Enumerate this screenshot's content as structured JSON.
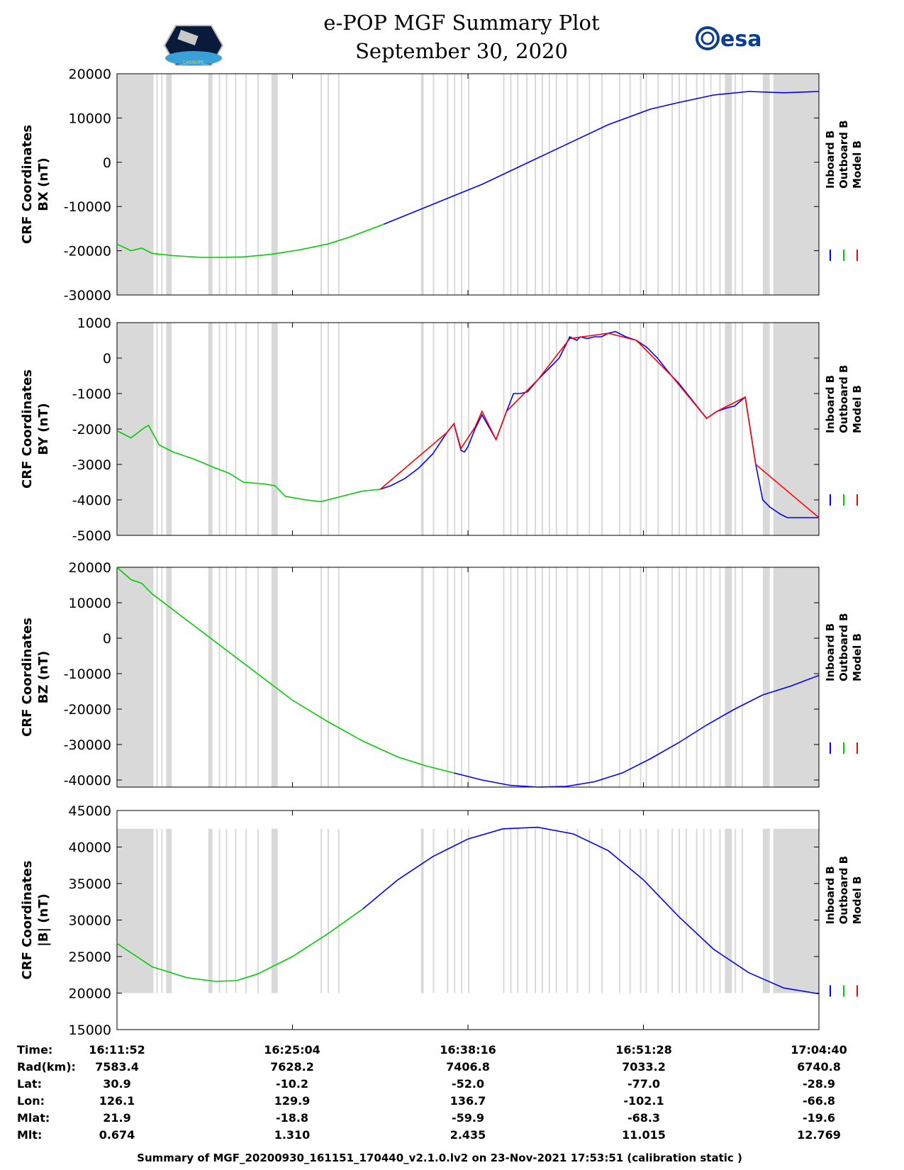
{
  "header": {
    "title": "e-POP MGF Summary Plot",
    "date": "September 30, 2020",
    "logo_left_text": "CASSIOPE",
    "logo_right_text": "esa"
  },
  "legend": {
    "labels": [
      "Inboard B",
      "Outboard B",
      "Model B"
    ],
    "colors": [
      "#0000ff",
      "#00cc00",
      "#ff0000"
    ]
  },
  "time_ticks": [
    "16:11:52",
    "16:25:04",
    "16:38:16",
    "16:51:28",
    "17:04:40"
  ],
  "ephemeris": {
    "rows": [
      {
        "label": "Time:",
        "values": [
          "16:11:52",
          "16:25:04",
          "16:38:16",
          "16:51:28",
          "17:04:40"
        ]
      },
      {
        "label": "Rad(km):",
        "values": [
          "7583.4",
          "7628.2",
          "7406.8",
          "7033.2",
          "6740.8"
        ]
      },
      {
        "label": "Lat:",
        "values": [
          "30.9",
          "-10.2",
          "-52.0",
          "-77.0",
          "-28.9"
        ]
      },
      {
        "label": "Lon:",
        "values": [
          "126.1",
          "129.9",
          "136.7",
          "-102.1",
          "-66.8"
        ]
      },
      {
        "label": "Mlat:",
        "values": [
          "21.9",
          "-18.8",
          "-59.9",
          "-68.3",
          "-19.6"
        ]
      },
      {
        "label": "Mlt:",
        "values": [
          "0.674",
          "1.310",
          "2.435",
          "11.015",
          "12.769"
        ]
      }
    ]
  },
  "footer": "Summary of MGF_20200930_161151_170440_v2.1.0.lv2 on 23-Nov-2021 17:53:51 (calibration static )",
  "gaps": [
    [
      0.0,
      0.052
    ],
    [
      0.056,
      0.058
    ],
    [
      0.063,
      0.065
    ],
    [
      0.07,
      0.078
    ],
    [
      0.13,
      0.136
    ],
    [
      0.145,
      0.147
    ],
    [
      0.155,
      0.157
    ],
    [
      0.168,
      0.17
    ],
    [
      0.183,
      0.185
    ],
    [
      0.2,
      0.202
    ],
    [
      0.22,
      0.229
    ],
    [
      0.29,
      0.292
    ],
    [
      0.3,
      0.302
    ],
    [
      0.315,
      0.317
    ],
    [
      0.433,
      0.437
    ],
    [
      0.45,
      0.452
    ],
    [
      0.47,
      0.472
    ],
    [
      0.48,
      0.482
    ],
    [
      0.49,
      0.492
    ],
    [
      0.5,
      0.502
    ],
    [
      0.55,
      0.552
    ],
    [
      0.56,
      0.562
    ],
    [
      0.57,
      0.572
    ],
    [
      0.583,
      0.585
    ],
    [
      0.595,
      0.597
    ],
    [
      0.605,
      0.607
    ],
    [
      0.615,
      0.617
    ],
    [
      0.625,
      0.627
    ],
    [
      0.64,
      0.642
    ],
    [
      0.655,
      0.657
    ],
    [
      0.672,
      0.674
    ],
    [
      0.69,
      0.692
    ],
    [
      0.715,
      0.717
    ],
    [
      0.73,
      0.732
    ],
    [
      0.745,
      0.747
    ],
    [
      0.753,
      0.755
    ],
    [
      0.77,
      0.772
    ],
    [
      0.79,
      0.792
    ],
    [
      0.8,
      0.802
    ],
    [
      0.81,
      0.812
    ],
    [
      0.825,
      0.827
    ],
    [
      0.835,
      0.837
    ],
    [
      0.845,
      0.847
    ],
    [
      0.858,
      0.86
    ],
    [
      0.866,
      0.876
    ],
    [
      0.88,
      0.882
    ],
    [
      0.89,
      0.892
    ],
    [
      0.92,
      0.93
    ],
    [
      0.935,
      1.0
    ]
  ],
  "chart_data": [
    {
      "type": "line",
      "name": "BX",
      "ylabel": [
        "CRF Coordinates",
        "BX (nT)"
      ],
      "ylim": [
        -30000,
        20000
      ],
      "yticks": [
        20000,
        10000,
        0,
        -10000,
        -20000,
        -30000
      ],
      "x_range": [
        0,
        1
      ],
      "outboard_end": 0.38,
      "series": [
        {
          "name": "Inboard B",
          "color": "#0000ff",
          "x": [
            0.38,
            0.45,
            0.52,
            0.58,
            0.64,
            0.7,
            0.76,
            0.8,
            0.85,
            0.9,
            0.95,
            1.0
          ],
          "y": [
            -14000,
            -9500,
            -5000,
            -500,
            4000,
            8500,
            12000,
            13500,
            15200,
            16000,
            15700,
            16000
          ]
        },
        {
          "name": "Outboard B",
          "color": "#00cc00",
          "x": [
            0.0,
            0.02,
            0.035,
            0.05,
            0.08,
            0.12,
            0.15,
            0.18,
            0.22,
            0.26,
            0.3,
            0.33,
            0.38
          ],
          "y": [
            -18500,
            -20000,
            -19400,
            -20600,
            -21100,
            -21500,
            -21500,
            -21400,
            -20800,
            -19800,
            -18500,
            -17000,
            -14000
          ]
        },
        {
          "name": "Model B",
          "color": "#ff0000",
          "x": [],
          "y": []
        }
      ]
    },
    {
      "type": "line",
      "name": "BY",
      "ylabel": [
        "CRF Coordinates",
        "BY (nT)"
      ],
      "ylim": [
        -5000,
        1000
      ],
      "yticks": [
        1000,
        0,
        -1000,
        -2000,
        -3000,
        -4000,
        -5000
      ],
      "x_range": [
        0,
        1
      ],
      "outboard_end": 0.375,
      "series": [
        {
          "name": "Inboard B",
          "color": "#0000ff",
          "x": [
            0.375,
            0.39,
            0.41,
            0.43,
            0.45,
            0.47,
            0.47,
            0.48,
            0.49,
            0.495,
            0.5,
            0.51,
            0.52,
            0.54,
            0.555,
            0.565,
            0.575,
            0.585,
            0.6,
            0.615,
            0.63,
            0.645,
            0.655,
            0.66,
            0.67,
            0.68,
            0.69,
            0.7,
            0.71,
            0.725,
            0.74,
            0.755,
            0.77,
            0.79,
            0.8,
            0.82,
            0.84,
            0.855,
            0.87,
            0.88,
            0.895,
            0.91,
            0.92,
            0.93,
            0.945,
            0.955,
            0.965,
            0.975,
            0.985,
            1.0
          ],
          "y": [
            -3700,
            -3600,
            -3400,
            -3100,
            -2700,
            -2100,
            -2100,
            -1850,
            -2600,
            -2650,
            -2500,
            -2000,
            -1600,
            -2300,
            -1500,
            -1000,
            -1000,
            -950,
            -600,
            -300,
            0,
            600,
            500,
            600,
            550,
            600,
            600,
            700,
            750,
            600,
            500,
            300,
            0,
            -500,
            -700,
            -1200,
            -1700,
            -1500,
            -1400,
            -1350,
            -1100,
            -3000,
            -4000,
            -4200,
            -4400,
            -4500,
            -4500,
            -4500,
            -4500,
            -4500
          ]
        },
        {
          "name": "Outboard B",
          "color": "#00cc00",
          "x": [
            0.0,
            0.02,
            0.04,
            0.045,
            0.06,
            0.08,
            0.11,
            0.14,
            0.16,
            0.18,
            0.21,
            0.225,
            0.24,
            0.27,
            0.29,
            0.31,
            0.33,
            0.35,
            0.375
          ],
          "y": [
            -2050,
            -2250,
            -1950,
            -1900,
            -2450,
            -2650,
            -2850,
            -3100,
            -3250,
            -3500,
            -3550,
            -3600,
            -3900,
            -4000,
            -4050,
            -3950,
            -3850,
            -3750,
            -3700
          ]
        },
        {
          "name": "Model B",
          "color": "#ff0000",
          "x": [
            0.375,
            0.47,
            0.48,
            0.49,
            0.51,
            0.52,
            0.54,
            0.555,
            0.6,
            0.645,
            0.7,
            0.74,
            0.79,
            0.84,
            0.855,
            0.895,
            0.91,
            1.0
          ],
          "y": [
            -3700,
            -2100,
            -1850,
            -2550,
            -1950,
            -1500,
            -2300,
            -1500,
            -600,
            550,
            700,
            500,
            -500,
            -1700,
            -1500,
            -1100,
            -3000,
            -4500
          ]
        }
      ]
    },
    {
      "type": "line",
      "name": "BZ",
      "ylabel": [
        "CRF Coordinates",
        "BZ (nT)"
      ],
      "ylim": [
        -42000,
        20000
      ],
      "yticks": [
        20000,
        10000,
        0,
        -10000,
        -20000,
        -30000,
        -40000
      ],
      "x_range": [
        0,
        1
      ],
      "outboard_end": 0.48,
      "series": [
        {
          "name": "Inboard B",
          "color": "#0000ff",
          "x": [
            0.48,
            0.52,
            0.56,
            0.6,
            0.64,
            0.68,
            0.72,
            0.76,
            0.8,
            0.84,
            0.88,
            0.92,
            0.96,
            1.0
          ],
          "y": [
            -38000,
            -40000,
            -41500,
            -42000,
            -41800,
            -40500,
            -38000,
            -34000,
            -29500,
            -24500,
            -20000,
            -16000,
            -13500,
            -10500
          ]
        },
        {
          "name": "Outboard B",
          "color": "#00cc00",
          "x": [
            0.0,
            0.02,
            0.035,
            0.05,
            0.1,
            0.15,
            0.2,
            0.25,
            0.3,
            0.35,
            0.4,
            0.44,
            0.48
          ],
          "y": [
            20000,
            16500,
            15500,
            12500,
            5000,
            -2500,
            -10000,
            -17500,
            -23500,
            -29000,
            -33500,
            -36000,
            -38000
          ]
        },
        {
          "name": "Model B",
          "color": "#ff0000",
          "x": [],
          "y": []
        }
      ]
    },
    {
      "type": "line",
      "name": "|B|",
      "ylabel": [
        "CRF Coordinates",
        "|B| (nT)"
      ],
      "ylim": [
        15000,
        45000
      ],
      "yticks": [
        45000,
        40000,
        35000,
        30000,
        25000,
        20000,
        15000
      ],
      "x_range": [
        0,
        1
      ],
      "outboard_end": 0.35,
      "gap_ylim": [
        20000,
        42500
      ],
      "series": [
        {
          "name": "Inboard B",
          "color": "#0000ff",
          "x": [
            0.35,
            0.4,
            0.45,
            0.5,
            0.55,
            0.6,
            0.65,
            0.7,
            0.75,
            0.8,
            0.85,
            0.9,
            0.95,
            1.0
          ],
          "y": [
            31500,
            35500,
            38700,
            41100,
            42500,
            42700,
            41800,
            39500,
            35500,
            30500,
            26000,
            22800,
            20700,
            19900
          ]
        },
        {
          "name": "Outboard B",
          "color": "#00cc00",
          "x": [
            0.0,
            0.05,
            0.1,
            0.14,
            0.17,
            0.2,
            0.25,
            0.3,
            0.35
          ],
          "y": [
            26800,
            23600,
            22100,
            21600,
            21700,
            22600,
            25000,
            28100,
            31500
          ]
        },
        {
          "name": "Model B",
          "color": "#ff0000",
          "x": [],
          "y": []
        }
      ]
    }
  ]
}
